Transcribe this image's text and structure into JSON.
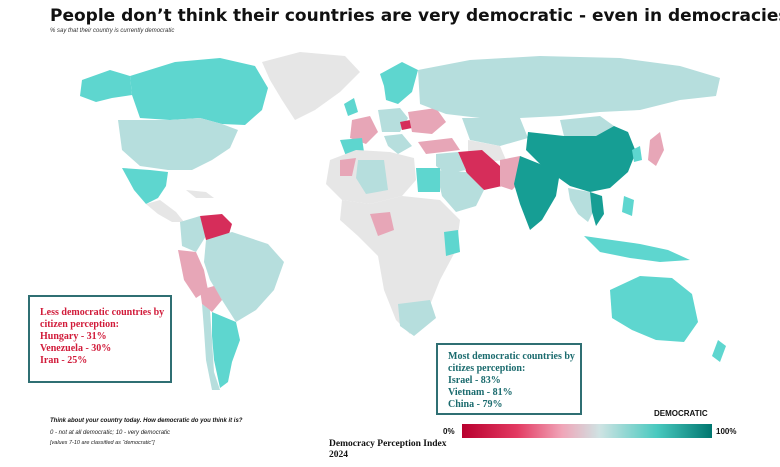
{
  "title": "People don’t think their countries are very democratic - even in democracies",
  "subtitle": "% say that their country is currently democratic",
  "less_box": {
    "heading": "Less democratic countries by citizen perception:",
    "items": [
      "Hungary - 31%",
      "Venezuela - 30%",
      "Iran - 25%"
    ]
  },
  "most_box": {
    "heading": "Most democratic countries by citizes perception:",
    "items": [
      "Israel - 83%",
      "Vietnam - 81%",
      "China - 79%"
    ]
  },
  "question": "Think about your country today. How democratic do you think it is?",
  "scale_text": "0 - not at all democratic; 10 - very democratic",
  "classification_text": "[values 7-10 are classified as “democratic”]",
  "source": {
    "line1": "Democracy Perception Index",
    "line2": "2024"
  },
  "legend": {
    "title": "DEMOCRATIC",
    "min": "0%",
    "max": "100%",
    "colors": [
      "#b8002e",
      "#e33a62",
      "#f0a5b8",
      "#cfe3e3",
      "#49c9bf",
      "#00766f"
    ]
  },
  "colors": {
    "no_data": "#e6e6e6",
    "low": "#e7a6b7",
    "very_low": "#d62d5a",
    "mid": "#b6dedd",
    "high": "#5ed6cf",
    "very_high": "#169e94"
  },
  "map_data": [
    {
      "region": "Hungary",
      "value": 31
    },
    {
      "region": "Venezuela",
      "value": 30
    },
    {
      "region": "Iran",
      "value": 25
    },
    {
      "region": "Israel",
      "value": 83
    },
    {
      "region": "Vietnam",
      "value": 81
    },
    {
      "region": "China",
      "value": 79
    }
  ]
}
